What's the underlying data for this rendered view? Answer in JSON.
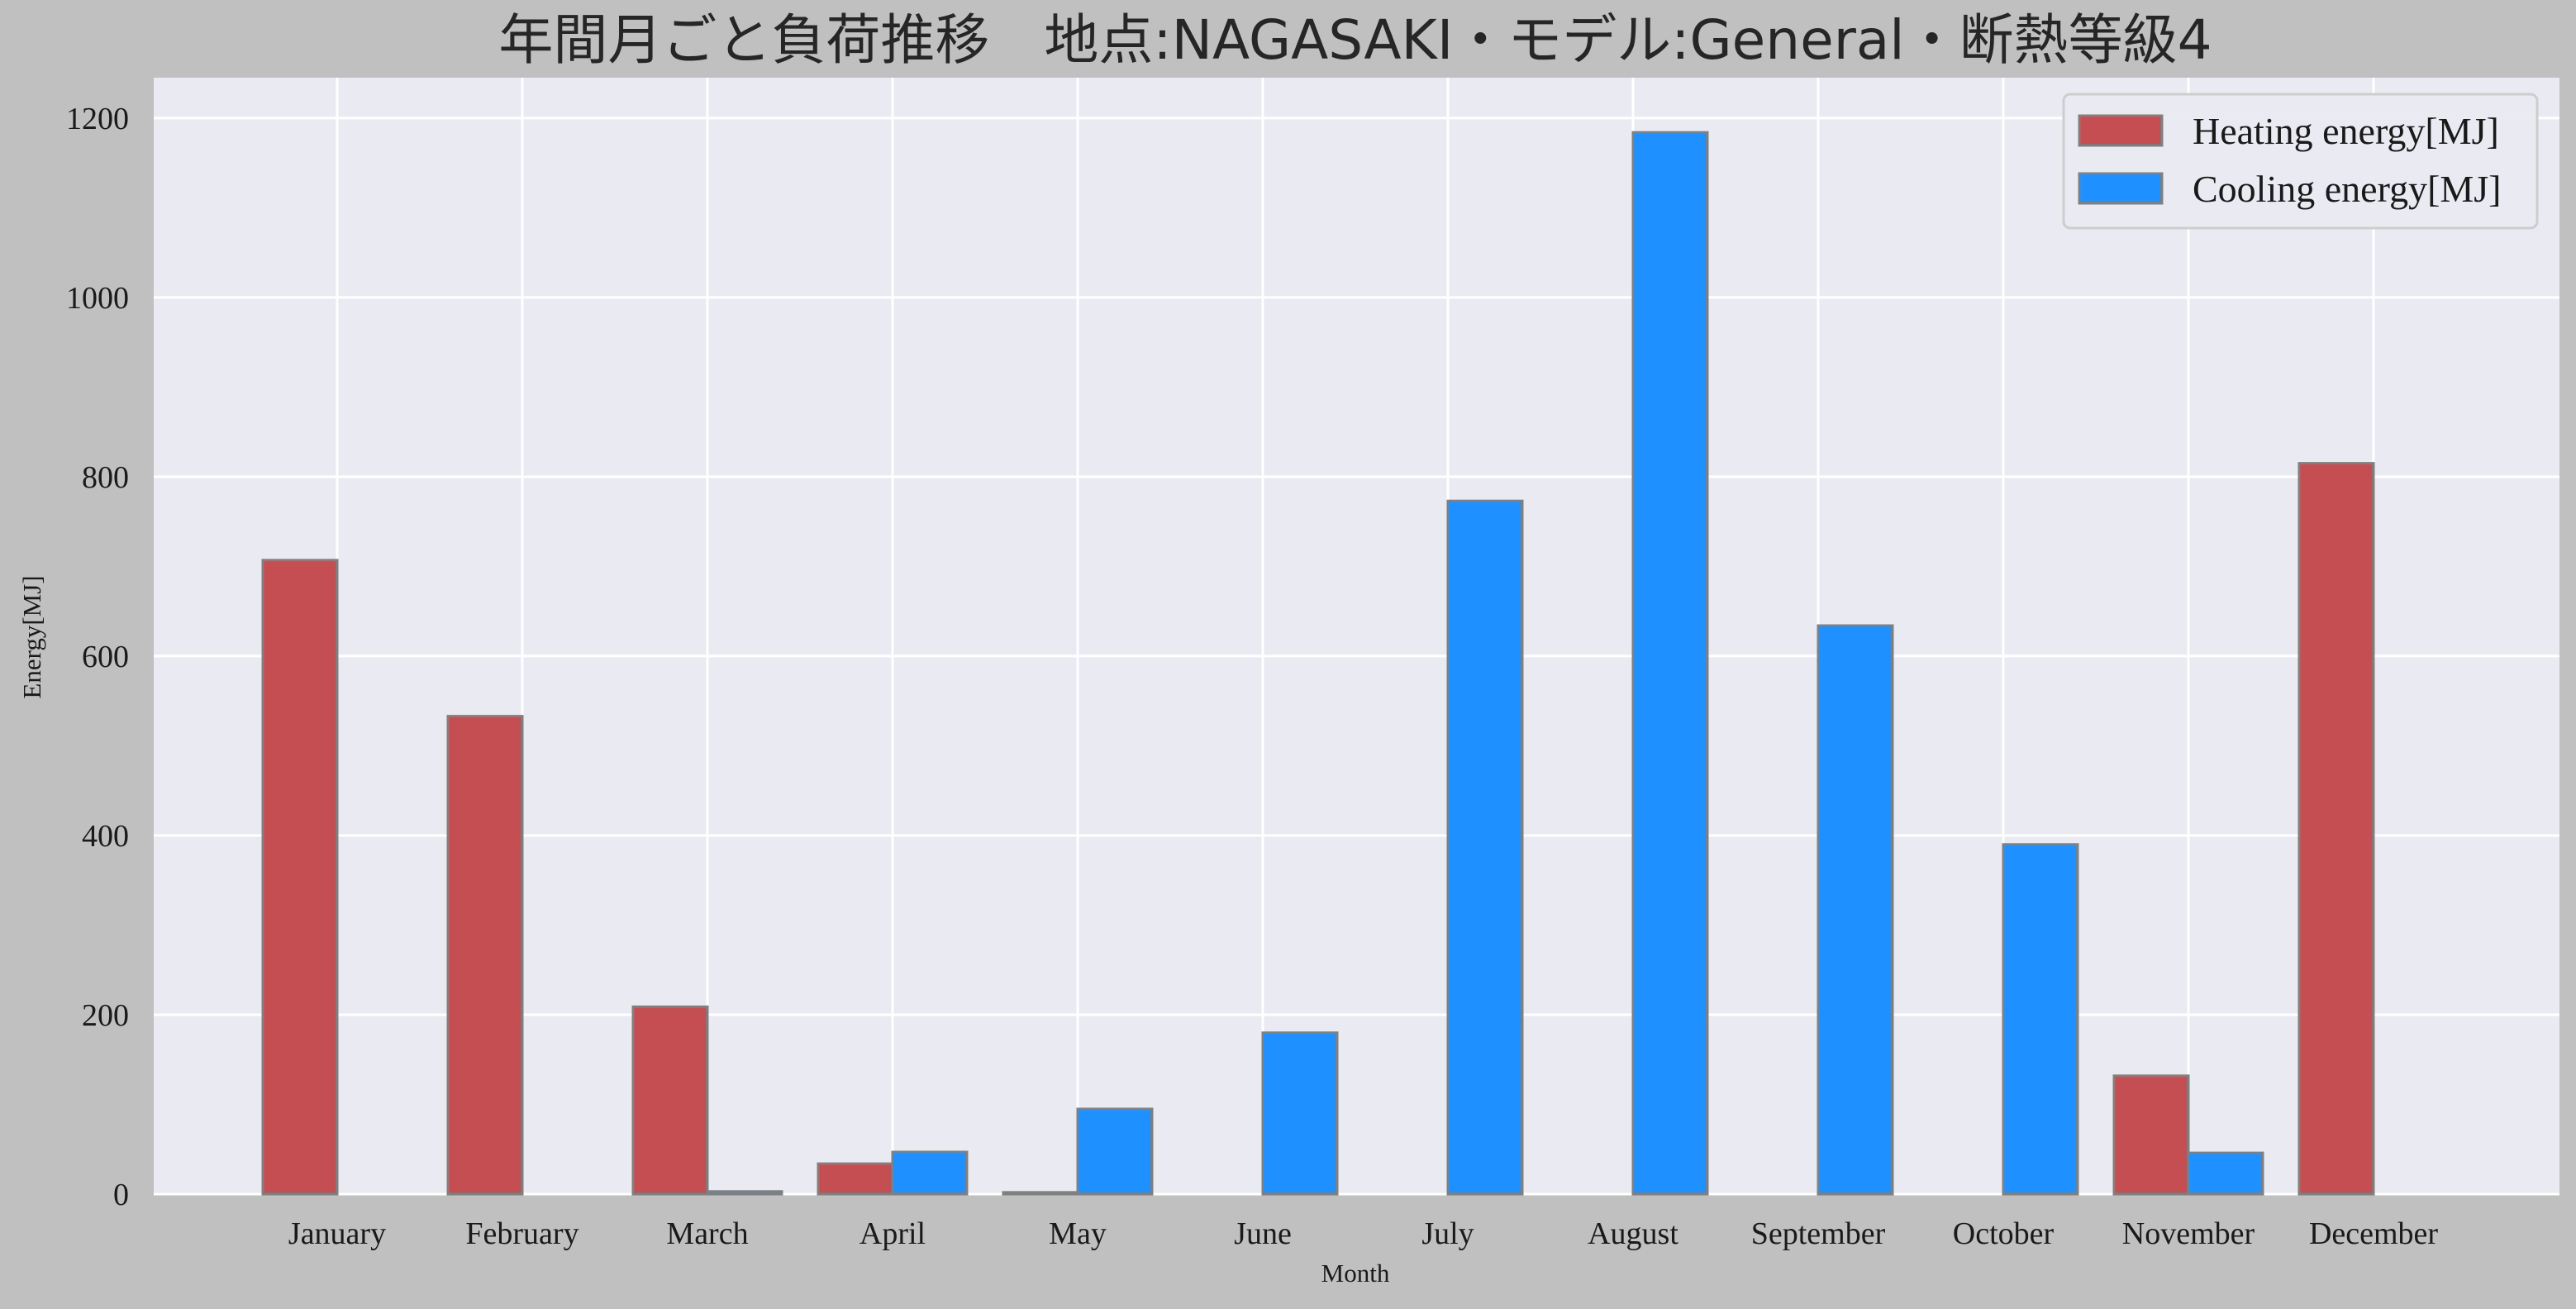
{
  "chart_data": {
    "type": "bar",
    "title": "年間月ごと負荷推移　地点:NAGASAKI・モデル:General・断熱等級4",
    "xlabel": "Month",
    "ylabel": "Energy[MJ]",
    "categories": [
      "January",
      "February",
      "March",
      "April",
      "May",
      "June",
      "July",
      "August",
      "September",
      "October",
      "November",
      "December"
    ],
    "series": [
      {
        "name": "Heating energy[MJ]",
        "color": "#c44e52",
        "values": [
          707,
          533,
          209,
          34,
          2,
          0,
          0,
          0,
          0,
          0,
          132,
          815
        ]
      },
      {
        "name": "Cooling energy[MJ]",
        "color": "#1e90ff",
        "values": [
          0,
          0,
          3,
          47,
          95,
          180,
          773,
          1184,
          634,
          390,
          46,
          0
        ]
      }
    ],
    "ylim": [
      0,
      1245
    ],
    "yticks": [
      0,
      200,
      400,
      600,
      800,
      1000,
      1200
    ],
    "grid": true,
    "legend": "top-right",
    "colors": {
      "figure_background": "#c0c0c0",
      "plot_background": "#eaeaf2",
      "grid": "#ffffff",
      "bar_edge": "#808080"
    }
  }
}
